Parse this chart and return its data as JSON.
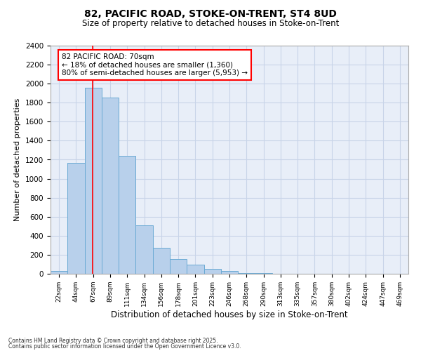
{
  "title1": "82, PACIFIC ROAD, STOKE-ON-TRENT, ST4 8UD",
  "title2": "Size of property relative to detached houses in Stoke-on-Trent",
  "xlabel": "Distribution of detached houses by size in Stoke-on-Trent",
  "ylabel": "Number of detached properties",
  "bins": [
    "22sqm",
    "44sqm",
    "67sqm",
    "89sqm",
    "111sqm",
    "134sqm",
    "156sqm",
    "178sqm",
    "201sqm",
    "223sqm",
    "246sqm",
    "268sqm",
    "290sqm",
    "313sqm",
    "335sqm",
    "357sqm",
    "380sqm",
    "402sqm",
    "424sqm",
    "447sqm",
    "469sqm"
  ],
  "values": [
    30,
    1170,
    1960,
    1850,
    1240,
    510,
    275,
    155,
    95,
    50,
    30,
    10,
    5,
    3,
    2,
    1,
    1,
    1,
    1,
    1,
    1
  ],
  "bar_color": "#b8d0eb",
  "bar_edge_color": "#6aaad4",
  "red_line_x": 2.0,
  "annotation_text": "82 PACIFIC ROAD: 70sqm\n← 18% of detached houses are smaller (1,360)\n80% of semi-detached houses are larger (5,953) →",
  "annotation_box_color": "white",
  "annotation_box_edge_color": "red",
  "ylim": [
    0,
    2400
  ],
  "yticks": [
    0,
    200,
    400,
    600,
    800,
    1000,
    1200,
    1400,
    1600,
    1800,
    2000,
    2200,
    2400
  ],
  "grid_color": "#c8d4e8",
  "background_color": "#e8eef8",
  "footer1": "Contains HM Land Registry data © Crown copyright and database right 2025.",
  "footer2": "Contains public sector information licensed under the Open Government Licence v3.0."
}
